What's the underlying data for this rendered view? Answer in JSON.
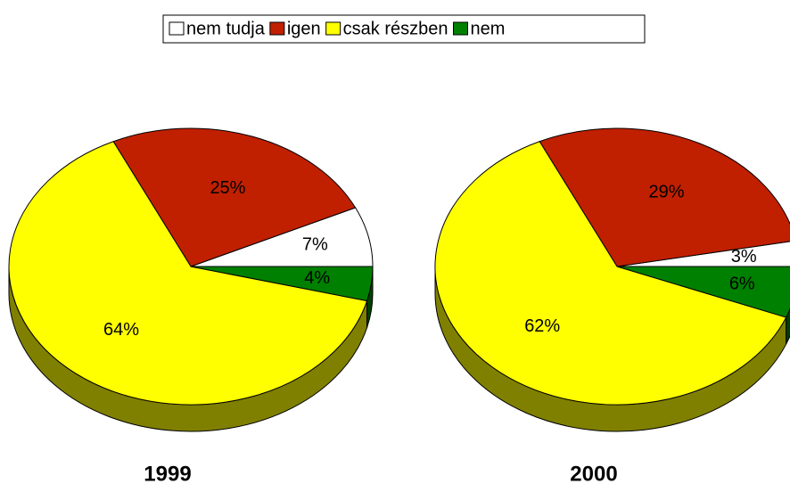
{
  "chart_data": [
    {
      "type": "pie",
      "title": "1999",
      "categories": [
        "nem tudja",
        "igen",
        "csak részben",
        "nem"
      ],
      "values": [
        7,
        25,
        64,
        4
      ],
      "value_labels": [
        "7%",
        "25%",
        "64%",
        "4%"
      ],
      "colors": [
        "#ffffff",
        "#c02000",
        "#ffff00",
        "#008000"
      ],
      "legend": "top"
    },
    {
      "type": "pie",
      "title": "2000",
      "categories": [
        "nem tudja",
        "igen",
        "csak részben",
        "nem"
      ],
      "values": [
        3,
        29,
        62,
        6
      ],
      "value_labels": [
        "3%",
        "29%",
        "62%",
        "6%"
      ],
      "colors": [
        "#ffffff",
        "#c02000",
        "#ffff00",
        "#008000"
      ],
      "legend": "top"
    }
  ]
}
